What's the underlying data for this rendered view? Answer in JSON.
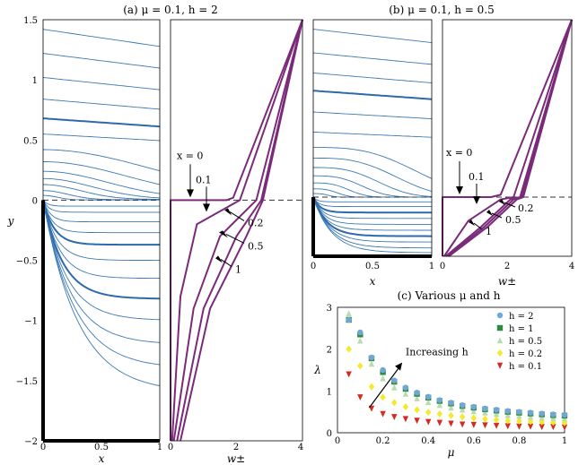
{
  "panels": {
    "a": {
      "title": "(a) μ = 0.1,  h = 2",
      "left": {
        "xlabel": "x",
        "ylabel": "y",
        "xticks": [
          "0",
          "0.5",
          "1"
        ],
        "yticks": [
          "−2",
          "−1.5",
          "−1",
          "−0.5",
          "0",
          "0.5",
          "1",
          "1.5"
        ]
      },
      "right": {
        "xlabel": "w±",
        "xticks": [
          "0",
          "2",
          "4"
        ]
      },
      "annotations": [
        "x = 0",
        "0.1",
        "0.2",
        "0.5",
        "1"
      ]
    },
    "b": {
      "title": "(b) μ = 0.1,  h = 0.5",
      "left": {
        "xlabel": "x",
        "xticks": [
          "0",
          "0.5",
          "1"
        ]
      },
      "right": {
        "xlabel": "w±",
        "xticks": [
          "0",
          "2",
          "4"
        ]
      },
      "annotations": [
        "x = 0",
        "0.1",
        "0.2",
        "0.5",
        "1"
      ]
    },
    "c": {
      "title": "(c) Various μ and h",
      "annotation": "Increasing h"
    }
  },
  "chart_data": [
    {
      "type": "line",
      "title": "(a) μ = 0.1,  h = 2",
      "xlabel": "x",
      "ylabel": "y",
      "xlim": [
        0,
        1
      ],
      "ylim": [
        -2,
        1.5
      ]
    },
    {
      "type": "line",
      "xlabel": "w±",
      "xlim": [
        0,
        4
      ],
      "ylim": [
        -2,
        1.5
      ],
      "series": [
        {
          "name": "x = 0",
          "x": [
            0,
            0,
            1.7,
            1.9,
            4
          ],
          "y": [
            -2,
            0,
            0,
            0.02,
            1.5
          ]
        },
        {
          "name": "0.1",
          "x": [
            0.05,
            0.3,
            0.8,
            2.1,
            4
          ],
          "y": [
            -2,
            -0.8,
            -0.2,
            0,
            1.5
          ]
        },
        {
          "name": "0.2",
          "x": [
            0.1,
            0.7,
            1.5,
            2.6,
            4
          ],
          "y": [
            -2,
            -0.9,
            -0.3,
            0,
            1.5
          ]
        },
        {
          "name": "0.5",
          "x": [
            0.2,
            1.0,
            2.0,
            2.75,
            4
          ],
          "y": [
            -2,
            -0.9,
            -0.3,
            0,
            1.5
          ]
        },
        {
          "name": "1",
          "x": [
            0.3,
            1.2,
            2.3,
            2.8,
            4
          ],
          "y": [
            -2,
            -0.9,
            -0.3,
            0,
            1.5
          ]
        }
      ]
    },
    {
      "type": "line",
      "title": "(b) μ = 0.1,  h = 0.5",
      "xlabel": "x",
      "xlim": [
        0,
        1
      ],
      "ylim": [
        -0.5,
        1.5
      ]
    },
    {
      "type": "line",
      "xlabel": "w±",
      "xlim": [
        0,
        4
      ],
      "ylim": [
        -0.5,
        1.5
      ],
      "series": [
        {
          "name": "x = 0",
          "x": [
            0,
            0,
            1.5,
            1.8,
            4
          ],
          "y": [
            -0.5,
            0,
            0,
            0.02,
            1.5
          ]
        },
        {
          "name": "0.1",
          "x": [
            0.05,
            0.8,
            1.8,
            2.2,
            4
          ],
          "y": [
            -0.5,
            -0.2,
            -0.02,
            0,
            1.5
          ]
        },
        {
          "name": "0.2",
          "x": [
            0.1,
            1.2,
            2.1,
            2.4,
            4
          ],
          "y": [
            -0.5,
            -0.25,
            -0.02,
            0,
            1.5
          ]
        },
        {
          "name": "0.5",
          "x": [
            0.15,
            1.3,
            2.2,
            2.45,
            4
          ],
          "y": [
            -0.5,
            -0.25,
            -0.02,
            0,
            1.5
          ]
        },
        {
          "name": "1",
          "x": [
            0.2,
            1.4,
            2.3,
            2.5,
            4
          ],
          "y": [
            -0.5,
            -0.25,
            -0.02,
            0,
            1.5
          ]
        }
      ]
    },
    {
      "type": "scatter",
      "title": "(c) Various μ and h",
      "xlabel": "μ",
      "ylabel": "λ",
      "xlim": [
        0,
        1
      ],
      "ylim": [
        0,
        3
      ],
      "xticks": [
        "0",
        "0.2",
        "0.4",
        "0.6",
        "0.8",
        "1"
      ],
      "yticks": [
        "0",
        "1",
        "2",
        "3"
      ],
      "legend": "top-right",
      "x": [
        0.05,
        0.1,
        0.15,
        0.2,
        0.25,
        0.3,
        0.35,
        0.4,
        0.45,
        0.5,
        0.55,
        0.6,
        0.65,
        0.7,
        0.75,
        0.8,
        0.85,
        0.9,
        0.95,
        1.0
      ],
      "series": [
        {
          "name": "h = 2",
          "color": "#6fa8d6",
          "marker": "circle",
          "values": [
            2.7,
            2.4,
            1.8,
            1.5,
            1.25,
            1.08,
            0.96,
            0.86,
            0.78,
            0.72,
            0.66,
            0.62,
            0.58,
            0.55,
            0.52,
            0.5,
            0.48,
            0.46,
            0.44,
            0.43
          ]
        },
        {
          "name": "h = 1",
          "color": "#2e8b3e",
          "marker": "square",
          "values": [
            2.7,
            2.35,
            1.78,
            1.45,
            1.22,
            1.05,
            0.93,
            0.84,
            0.76,
            0.7,
            0.64,
            0.6,
            0.56,
            0.53,
            0.5,
            0.48,
            0.46,
            0.44,
            0.42,
            0.41
          ]
        },
        {
          "name": "h = 0.5",
          "color": "#b9dbb0",
          "marker": "triangle-up",
          "values": [
            2.85,
            2.2,
            1.65,
            1.3,
            1.08,
            0.93,
            0.82,
            0.73,
            0.66,
            0.6,
            0.55,
            0.51,
            0.48,
            0.45,
            0.42,
            0.4,
            0.38,
            0.36,
            0.35,
            0.34
          ]
        },
        {
          "name": "h = 0.2",
          "color": "#f2ea2a",
          "marker": "diamond",
          "values": [
            2.0,
            1.6,
            1.1,
            0.85,
            0.72,
            0.62,
            0.55,
            0.49,
            0.45,
            0.41,
            0.38,
            0.35,
            0.33,
            0.31,
            0.29,
            0.28,
            0.27,
            0.26,
            0.25,
            0.24
          ]
        },
        {
          "name": "h = 0.1",
          "color": "#d42a1f",
          "marker": "triangle-down",
          "values": [
            1.4,
            0.85,
            0.58,
            0.45,
            0.38,
            0.33,
            0.29,
            0.26,
            0.24,
            0.22,
            0.2,
            0.19,
            0.18,
            0.17,
            0.16,
            0.15,
            0.15,
            0.14,
            0.14,
            0.13
          ]
        }
      ]
    }
  ]
}
